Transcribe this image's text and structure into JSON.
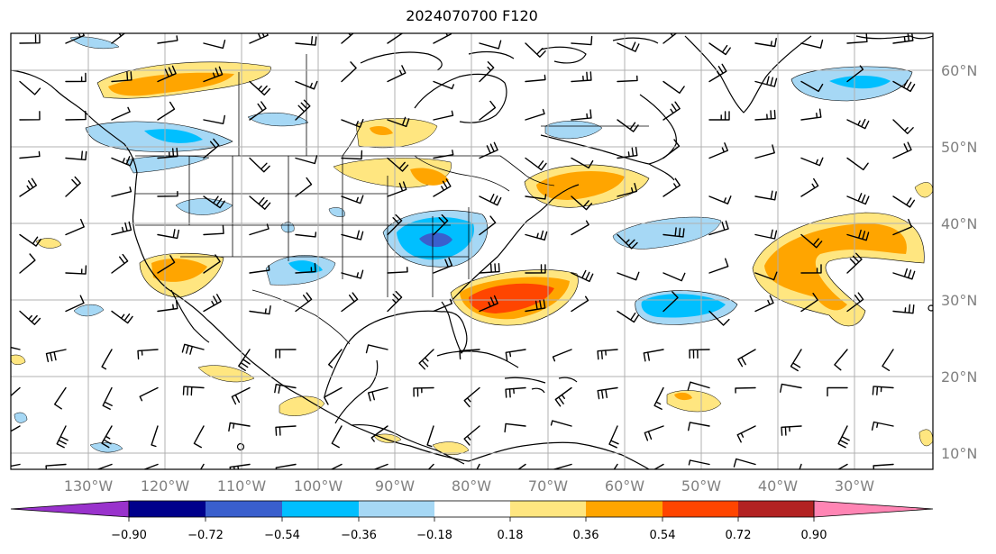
{
  "title": "2024070700 F120",
  "map": {
    "latitude_labels": [
      "60°N",
      "50°N",
      "40°N",
      "30°N",
      "20°N",
      "10°N"
    ],
    "longitude_labels": [
      "130°W",
      "120°W",
      "110°W",
      "100°W",
      "90°W",
      "80°W",
      "70°W",
      "60°W",
      "50°W",
      "40°W",
      "30°W"
    ],
    "land_color": "#ffffff",
    "gridline_color": "#b0b0b0"
  },
  "colorbar": {
    "ticks": [
      "−0.90",
      "−0.72",
      "−0.54",
      "−0.36",
      "−0.18",
      "0.18",
      "0.36",
      "0.54",
      "0.72",
      "0.90"
    ],
    "colors": [
      "#9932cc",
      "#00008b",
      "#3a5fcd",
      "#00bfff",
      "#a6d8f5",
      "#ffffff",
      "#ffe680",
      "#ffa500",
      "#ff4500",
      "#b22222",
      "#ff85b4"
    ],
    "extend": "both"
  },
  "anomaly_features": [
    {
      "region": "Pacific NW (offshore)",
      "level": "0.36 to 0.54",
      "color": "#ffa500"
    },
    {
      "region": "Pacific NW coast",
      "level": "-0.54 to -0.36",
      "color": "#00bfff"
    },
    {
      "region": "Ohio Valley",
      "level": "-0.72 to -0.54",
      "color": "#3a5fcd"
    },
    {
      "region": "Southeast US coast",
      "level": "0.54 to 0.72",
      "color": "#ff4500"
    },
    {
      "region": "Central Atlantic",
      "level": "0.36 to 0.54",
      "color": "#ffa500"
    },
    {
      "region": "Labrador Sea",
      "level": "-0.54 to -0.36",
      "color": "#00bfff"
    },
    {
      "region": "Gulf of St. Lawrence",
      "level": "0.36 to 0.54",
      "color": "#ffa500"
    },
    {
      "region": "Subtropical Atlantic",
      "level": "-0.54 to -0.36",
      "color": "#00bfff"
    },
    {
      "region": "Southwest US",
      "level": "0.36 to 0.54",
      "color": "#ffa500"
    }
  ]
}
